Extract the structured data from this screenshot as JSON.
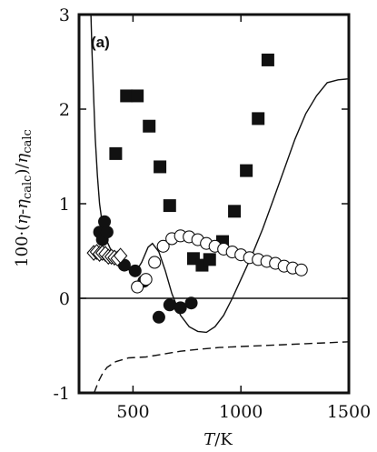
{
  "chart_data": {
    "type": "scatter",
    "panel_label": "(a)",
    "xlabel_italic": "T",
    "xlabel_rest": "/K",
    "ylabel_pre": "100·(",
    "ylabel_eta1": "η",
    "ylabel_mid1": "-",
    "ylabel_eta2": "η",
    "ylabel_sub1": "calc",
    "ylabel_mid2": ")/",
    "ylabel_eta3": "η",
    "ylabel_sub2": "calc",
    "xlim": [
      250,
      1500
    ],
    "ylim": [
      -1,
      3
    ],
    "x_ticks": [
      500,
      1000,
      1500
    ],
    "y_ticks": [
      -1,
      0,
      1,
      2,
      3
    ],
    "x_tick_labels": [
      "500",
      "1000",
      "1500"
    ],
    "y_tick_labels": [
      "-1",
      "0",
      "1",
      "2",
      "3"
    ],
    "grid": false,
    "zero_line": 0,
    "series": [
      {
        "marker": "filled-square",
        "color": "#111111",
        "points": [
          [
            420,
            1.53
          ],
          [
            470,
            2.14
          ],
          [
            520,
            2.14
          ],
          [
            575,
            1.82
          ],
          [
            625,
            1.39
          ],
          [
            670,
            0.98
          ],
          [
            780,
            0.42
          ],
          [
            820,
            0.35
          ],
          [
            855,
            0.41
          ],
          [
            915,
            0.6
          ],
          [
            970,
            0.92
          ],
          [
            1025,
            1.35
          ],
          [
            1080,
            1.9
          ],
          [
            1125,
            2.52
          ]
        ]
      },
      {
        "marker": "filled-circle",
        "color": "#111111",
        "points": [
          [
            345,
            0.7
          ],
          [
            358,
            0.62
          ],
          [
            368,
            0.81
          ],
          [
            380,
            0.7
          ],
          [
            460,
            0.35
          ],
          [
            510,
            0.29
          ],
          [
            550,
            0.18
          ],
          [
            620,
            -0.2
          ],
          [
            670,
            -0.07
          ],
          [
            720,
            -0.1
          ],
          [
            770,
            -0.05
          ]
        ]
      },
      {
        "marker": "open-circle",
        "color": "#111111",
        "points": [
          [
            520,
            0.12
          ],
          [
            560,
            0.2
          ],
          [
            600,
            0.38
          ],
          [
            640,
            0.55
          ],
          [
            680,
            0.63
          ],
          [
            720,
            0.66
          ],
          [
            760,
            0.65
          ],
          [
            800,
            0.62
          ],
          [
            840,
            0.58
          ],
          [
            880,
            0.55
          ],
          [
            920,
            0.52
          ],
          [
            960,
            0.49
          ],
          [
            1000,
            0.46
          ],
          [
            1040,
            0.43
          ],
          [
            1080,
            0.41
          ],
          [
            1120,
            0.39
          ],
          [
            1160,
            0.37
          ],
          [
            1200,
            0.34
          ],
          [
            1240,
            0.32
          ],
          [
            1280,
            0.3
          ]
        ]
      },
      {
        "marker": "open-diamond",
        "color": "#111111",
        "points": [
          [
            318,
            0.48
          ],
          [
            332,
            0.49
          ],
          [
            345,
            0.47
          ],
          [
            358,
            0.48
          ],
          [
            372,
            0.47
          ],
          [
            386,
            0.44
          ],
          [
            400,
            0.44
          ],
          [
            414,
            0.43
          ],
          [
            428,
            0.42
          ],
          [
            442,
            0.45
          ]
        ]
      },
      {
        "line_style": "solid",
        "color": "#111111",
        "points": [
          [
            305,
            3.0
          ],
          [
            310,
            2.6
          ],
          [
            318,
            2.1
          ],
          [
            325,
            1.7
          ],
          [
            335,
            1.3
          ],
          [
            345,
            1.0
          ],
          [
            360,
            0.75
          ],
          [
            380,
            0.6
          ],
          [
            400,
            0.5
          ],
          [
            430,
            0.42
          ],
          [
            460,
            0.35
          ],
          [
            490,
            0.28
          ],
          [
            510,
            0.27
          ],
          [
            540,
            0.38
          ],
          [
            570,
            0.54
          ],
          [
            590,
            0.58
          ],
          [
            620,
            0.49
          ],
          [
            650,
            0.29
          ],
          [
            680,
            0.05
          ],
          [
            720,
            -0.18
          ],
          [
            760,
            -0.3
          ],
          [
            800,
            -0.35
          ],
          [
            840,
            -0.36
          ],
          [
            880,
            -0.3
          ],
          [
            920,
            -0.18
          ],
          [
            960,
            0.0
          ],
          [
            1000,
            0.2
          ],
          [
            1050,
            0.45
          ],
          [
            1100,
            0.73
          ],
          [
            1150,
            1.04
          ],
          [
            1200,
            1.36
          ],
          [
            1250,
            1.68
          ],
          [
            1300,
            1.95
          ],
          [
            1350,
            2.14
          ],
          [
            1400,
            2.28
          ],
          [
            1450,
            2.31
          ],
          [
            1500,
            2.32
          ]
        ]
      },
      {
        "line_style": "dashed",
        "color": "#111111",
        "points": [
          [
            320,
            -1.0
          ],
          [
            340,
            -0.88
          ],
          [
            360,
            -0.79
          ],
          [
            380,
            -0.73
          ],
          [
            420,
            -0.67
          ],
          [
            480,
            -0.63
          ],
          [
            560,
            -0.62
          ],
          [
            640,
            -0.59
          ],
          [
            720,
            -0.56
          ],
          [
            800,
            -0.54
          ],
          [
            900,
            -0.52
          ],
          [
            1000,
            -0.51
          ],
          [
            1100,
            -0.5
          ],
          [
            1200,
            -0.49
          ],
          [
            1300,
            -0.48
          ],
          [
            1400,
            -0.47
          ],
          [
            1500,
            -0.46
          ]
        ]
      }
    ]
  }
}
